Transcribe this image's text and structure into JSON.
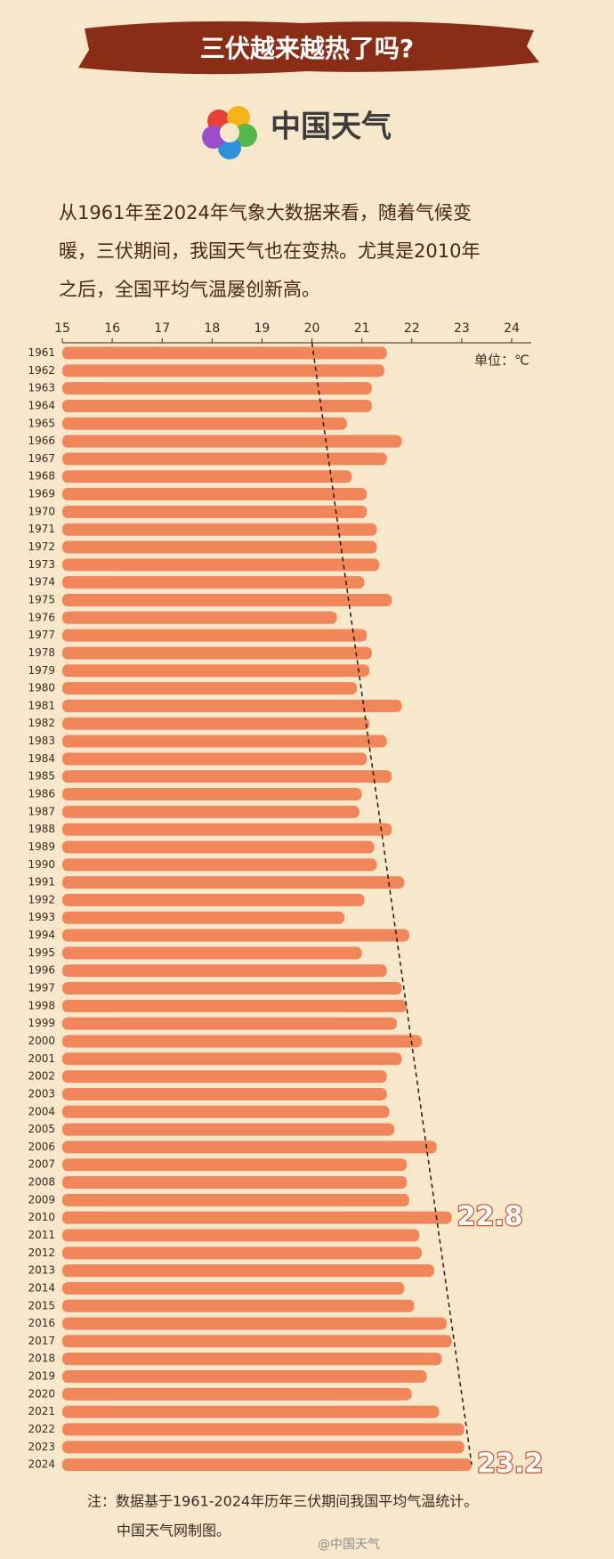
{
  "chart_data": {
    "type": "bar",
    "orientation": "horizontal",
    "title": "三伏越来越热了吗?",
    "brand": "中国天气",
    "intro": [
      "从1961年至2024年气象大数据来看，随着气候变",
      "暖，三伏期间，我国天气也在变热。尤其是2010年",
      "之后，全国平均气温屡创新高。"
    ],
    "unit": "单位：℃",
    "categories": [
      "1961",
      "1962",
      "1963",
      "1964",
      "1965",
      "1966",
      "1967",
      "1968",
      "1969",
      "1970",
      "1971",
      "1972",
      "1973",
      "1974",
      "1975",
      "1976",
      "1977",
      "1978",
      "1979",
      "1980",
      "1981",
      "1982",
      "1983",
      "1984",
      "1985",
      "1986",
      "1987",
      "1988",
      "1989",
      "1990",
      "1991",
      "1992",
      "1993",
      "1994",
      "1995",
      "1996",
      "1997",
      "1998",
      "1999",
      "2000",
      "2001",
      "2002",
      "2003",
      "2004",
      "2005",
      "2006",
      "2007",
      "2008",
      "2009",
      "2010",
      "2011",
      "2012",
      "2013",
      "2014",
      "2015",
      "2016",
      "2017",
      "2018",
      "2019",
      "2020",
      "2021",
      "2022",
      "2023",
      "2024"
    ],
    "values": [
      21.5,
      21.45,
      21.2,
      21.2,
      20.7,
      21.8,
      21.5,
      20.8,
      21.1,
      21.1,
      21.3,
      21.3,
      21.35,
      21.05,
      21.6,
      20.5,
      21.1,
      21.2,
      21.15,
      20.9,
      21.8,
      21.15,
      21.5,
      21.1,
      21.6,
      21.0,
      20.95,
      21.6,
      21.25,
      21.3,
      21.85,
      21.05,
      20.65,
      21.95,
      21.0,
      21.5,
      21.8,
      21.9,
      21.7,
      22.2,
      21.8,
      21.5,
      21.5,
      21.55,
      21.65,
      22.5,
      21.9,
      21.9,
      21.95,
      22.8,
      22.15,
      22.2,
      22.45,
      21.85,
      22.05,
      22.7,
      22.8,
      22.6,
      22.3,
      22.0,
      22.55,
      23.05,
      23.05,
      23.2
    ],
    "value_labels": [
      null,
      null,
      null,
      null,
      null,
      null,
      null,
      null,
      null,
      null,
      null,
      null,
      null,
      null,
      null,
      null,
      null,
      null,
      null,
      null,
      null,
      null,
      null,
      null,
      null,
      null,
      null,
      null,
      null,
      null,
      null,
      null,
      null,
      null,
      null,
      null,
      null,
      null,
      null,
      null,
      null,
      null,
      null,
      null,
      null,
      null,
      null,
      null,
      null,
      "22.8",
      null,
      null,
      null,
      null,
      null,
      null,
      null,
      null,
      null,
      null,
      null,
      null,
      null,
      "23.2"
    ],
    "color": "#f0865a",
    "trendline": [
      20,
      23.2
    ],
    "xlim": [
      15,
      24
    ],
    "xticks": [
      15,
      16,
      17,
      18,
      19,
      20,
      21,
      22,
      23,
      24
    ],
    "note": "注：数据基于1961-2024年历年三伏期间我国平均气温统计。",
    "credit": "中国天气网制图。",
    "watermark": "@中国天气"
  }
}
